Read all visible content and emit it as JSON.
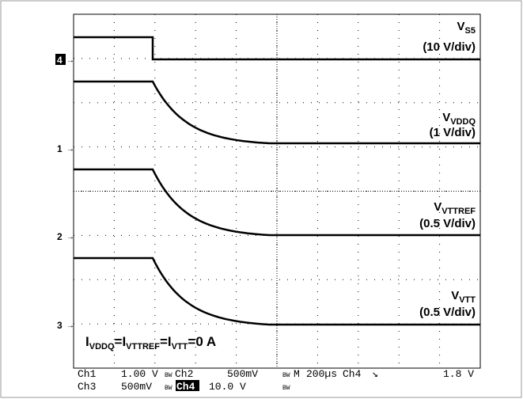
{
  "screen": {
    "markers": [
      "4",
      "1",
      "2",
      "3"
    ],
    "traces": [
      {
        "name": "V",
        "sub": "S5",
        "scale": "(10 V/div)"
      },
      {
        "name": "V",
        "sub": "VDDQ",
        "scale": "(1 V/div)"
      },
      {
        "name": "V",
        "sub": "VTTREF",
        "scale": "(0.5 V/div)"
      },
      {
        "name": "V",
        "sub": "VTT",
        "scale": "(0.5 V/div)"
      }
    ],
    "annotation": {
      "parts": [
        "I",
        "VDDQ",
        "=I",
        "VTTREF",
        "=I",
        "VTT",
        "=0 A"
      ]
    }
  },
  "status": {
    "row1": [
      "Ch1",
      "1.00 V",
      "BW",
      "Ch2",
      "500mV",
      "BW",
      "M",
      "200µs",
      "Ch4",
      "↘",
      "1.8 V"
    ],
    "row2": [
      "Ch3",
      "500mV",
      "BW",
      "Ch4",
      "10.0 V",
      "BW"
    ]
  }
}
